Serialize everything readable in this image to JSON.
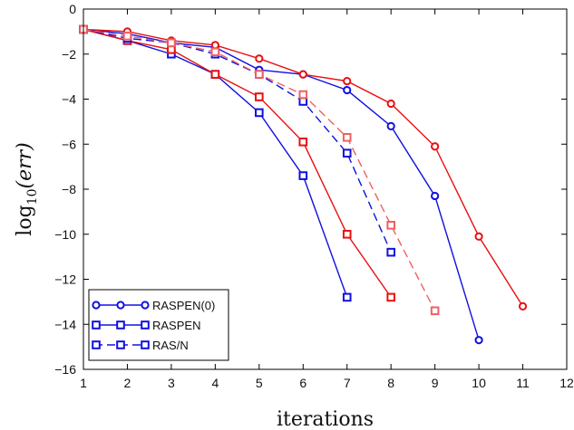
{
  "chart_data": {
    "type": "line",
    "title": "",
    "xlabel": "iterations",
    "ylabel_main": "log",
    "ylabel_sub": "10",
    "ylabel_arg": "(err)",
    "xlim": [
      1,
      12
    ],
    "ylim": [
      -16,
      0
    ],
    "xticks": [
      1,
      2,
      3,
      4,
      5,
      6,
      7,
      8,
      9,
      10,
      11,
      12
    ],
    "yticks": [
      0,
      -2,
      -4,
      -6,
      -8,
      -10,
      -12,
      -14,
      -16
    ],
    "grid": false,
    "legend_placement": "bottom-left",
    "colors": {
      "blue": "#1010e0",
      "red": "#e81010",
      "red_light": "#f06060",
      "axis": "#000000"
    },
    "series": [
      {
        "name": "RASPEN(0)",
        "marker": "circle",
        "color": "blue",
        "dash": "solid",
        "x": [
          1,
          2,
          3,
          4,
          5,
          6,
          7,
          8,
          9,
          10
        ],
        "y": [
          -0.9,
          -1.1,
          -1.5,
          -1.7,
          -2.7,
          -2.9,
          -3.6,
          -5.2,
          -8.3,
          -14.7
        ]
      },
      {
        "color": "red",
        "marker": "circle",
        "dash": "solid",
        "x": [
          1,
          2,
          3,
          4,
          5,
          6,
          7,
          8,
          9,
          10,
          11
        ],
        "y": [
          -0.9,
          -1.0,
          -1.4,
          -1.6,
          -2.2,
          -2.9,
          -3.2,
          -4.2,
          -6.1,
          -10.1,
          -13.2
        ]
      },
      {
        "name": "RASPEN",
        "marker": "square",
        "color": "blue",
        "dash": "solid",
        "x": [
          1,
          2,
          3,
          4,
          5,
          6,
          7
        ],
        "y": [
          -0.9,
          -1.4,
          -2.0,
          -2.9,
          -4.6,
          -7.4,
          -12.8
        ]
      },
      {
        "color": "red",
        "marker": "square",
        "dash": "solid",
        "x": [
          1,
          2,
          3,
          4,
          5,
          6,
          7,
          8
        ],
        "y": [
          -0.9,
          -1.4,
          -1.8,
          -2.9,
          -3.9,
          -5.9,
          -10.0,
          -12.8
        ]
      },
      {
        "name": "RAS/N",
        "marker": "square",
        "color": "blue",
        "dash": "dashed",
        "x": [
          1,
          2,
          3,
          4,
          5,
          6,
          7,
          8
        ],
        "y": [
          -0.9,
          -1.3,
          -1.5,
          -2.0,
          -2.9,
          -4.1,
          -6.4,
          -10.8
        ]
      },
      {
        "color": "red_light",
        "marker": "square",
        "dash": "dashed",
        "x": [
          1,
          2,
          3,
          4,
          5,
          6,
          7,
          8,
          9
        ],
        "y": [
          -0.9,
          -1.2,
          -1.5,
          -1.9,
          -2.9,
          -3.8,
          -5.7,
          -9.6,
          -13.4
        ]
      }
    ]
  }
}
